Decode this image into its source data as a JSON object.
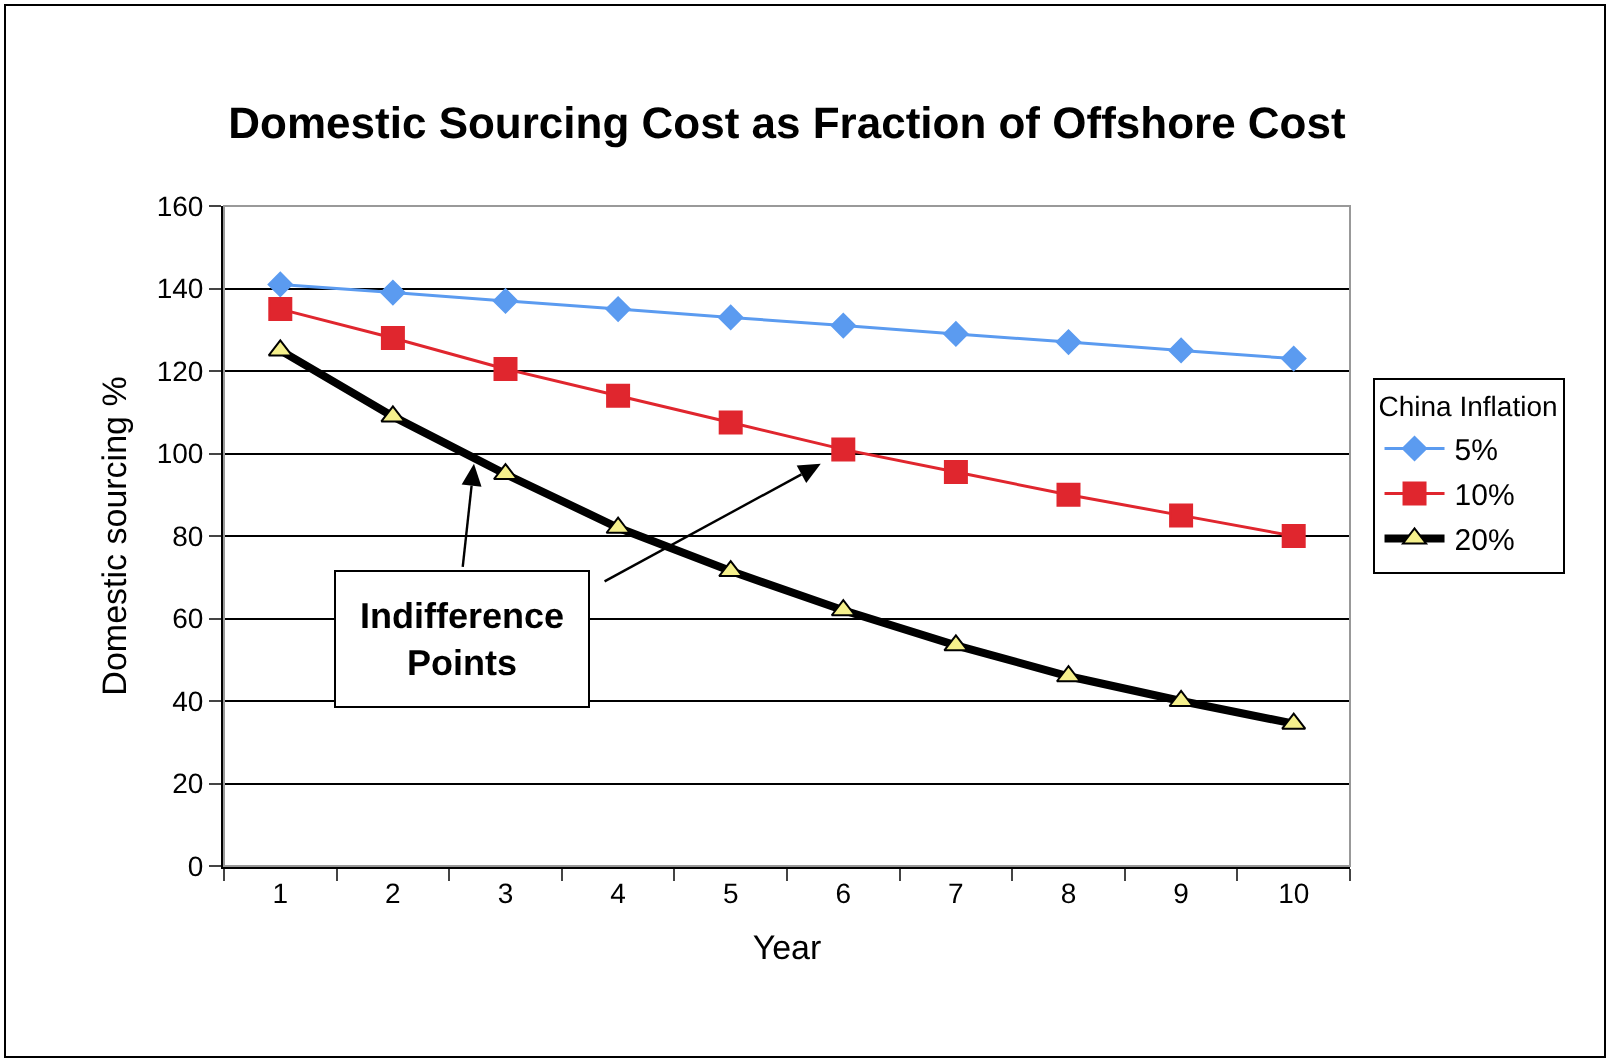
{
  "chart_data": {
    "type": "line",
    "title": "Domestic Sourcing Cost as Fraction of Offshore Cost",
    "xlabel": "Year",
    "ylabel": "Domestic sourcing %",
    "legend_title": "China Inflation",
    "categories": [
      "1",
      "2",
      "3",
      "4",
      "5",
      "6",
      "7",
      "8",
      "9",
      "10"
    ],
    "series": [
      {
        "name": "5%",
        "color": "#5b9bf0",
        "marker": "diamond",
        "values": [
          141,
          139,
          137,
          135,
          133,
          131,
          129,
          127,
          125,
          123
        ]
      },
      {
        "name": "10%",
        "color": "#e0262e",
        "marker": "square",
        "values": [
          135,
          128,
          120.5,
          114,
          107.5,
          101,
          95.5,
          90,
          85,
          80
        ]
      },
      {
        "name": "20%",
        "color": "#000000",
        "marker": "triangle",
        "values": [
          125,
          109,
          95,
          82,
          71.5,
          62,
          53.5,
          46,
          40,
          34.5
        ]
      }
    ],
    "ylim": [
      0,
      160
    ],
    "yticks": [
      0,
      20,
      40,
      60,
      80,
      100,
      120,
      140,
      160
    ],
    "grid": "y",
    "legend": "right",
    "line_style": "solid",
    "annotations": [
      "Indifference Points"
    ]
  }
}
